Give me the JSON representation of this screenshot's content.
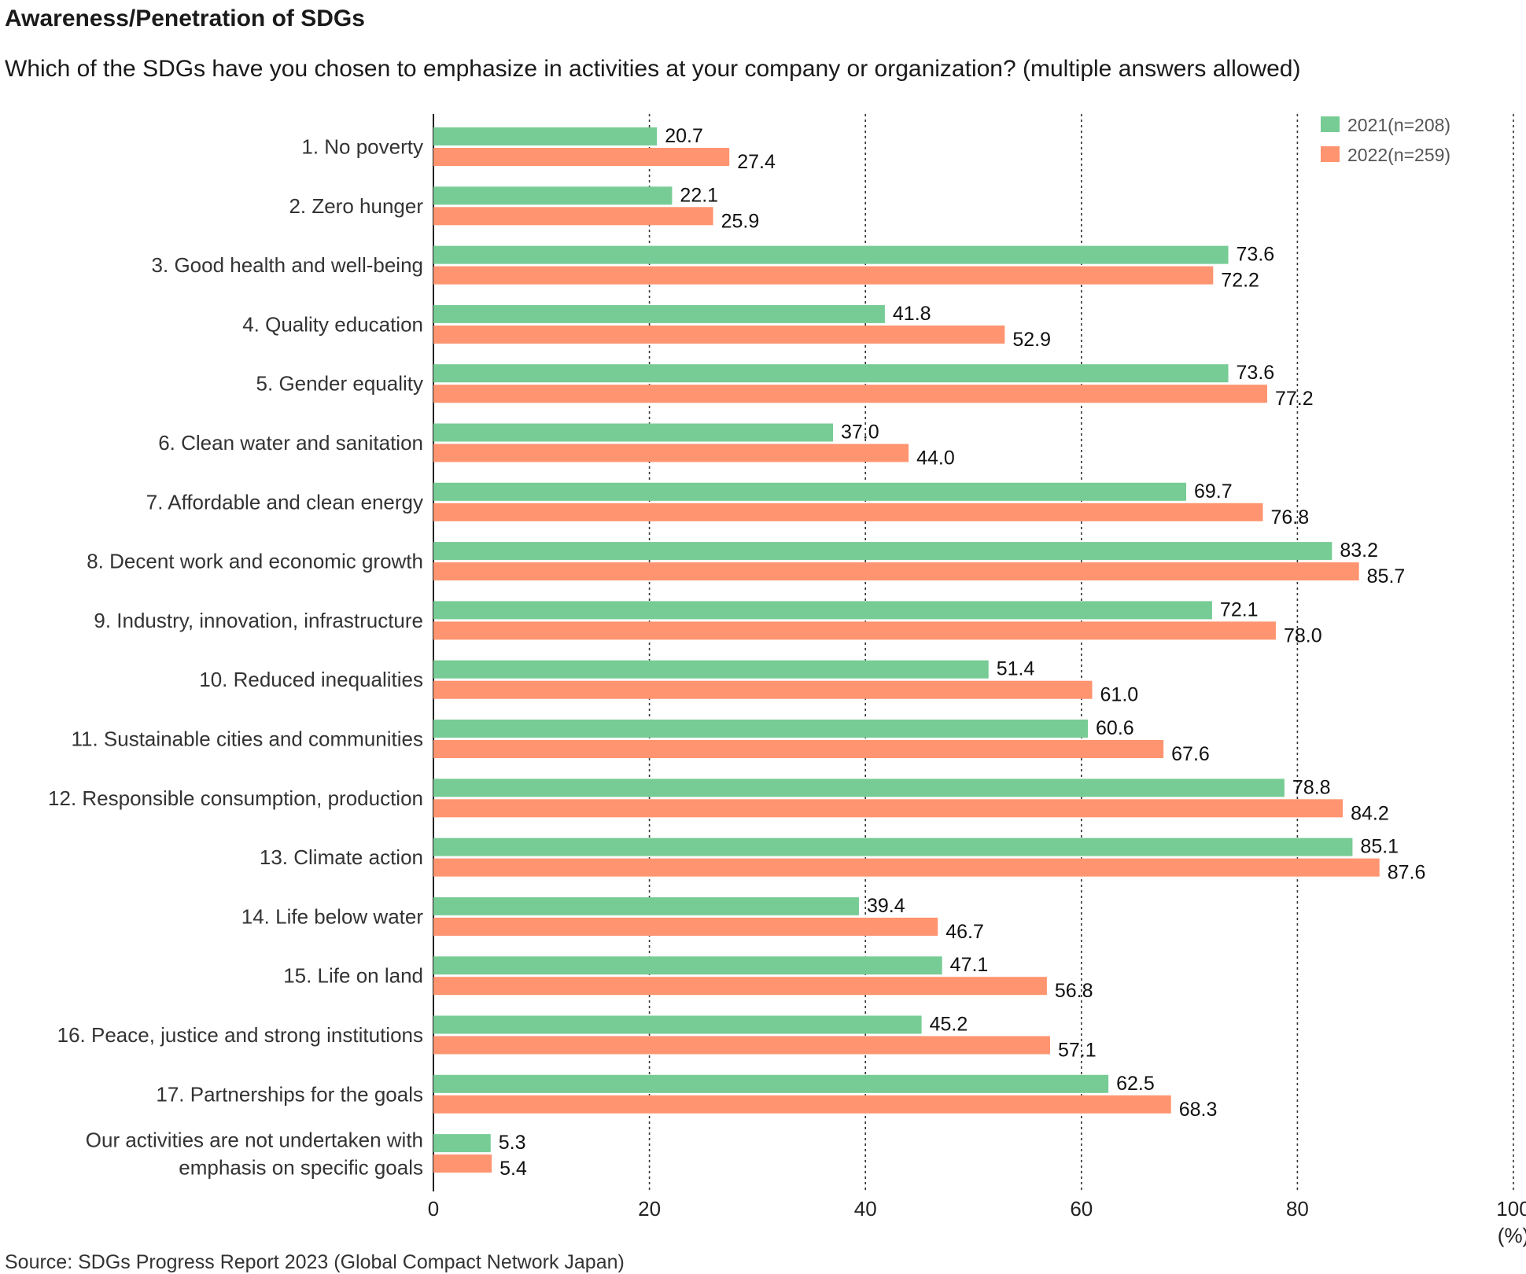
{
  "title": "Awareness/Penetration of SDGs",
  "subtitle": "Which of the SDGs have you chosen to emphasize in activities at your company or organization? (multiple answers allowed)",
  "source": "Source: SDGs Progress Report 2023 (Global Compact Network Japan)",
  "chart_data": {
    "type": "bar",
    "orientation": "horizontal",
    "title": "Awareness/Penetration of SDGs",
    "subtitle": "Which of the SDGs have you chosen to emphasize in activities at your company or organization? (multiple answers allowed)",
    "xlabel": "(%)",
    "ylabel": "",
    "xlim": [
      0,
      100
    ],
    "ticks": [
      0,
      20,
      40,
      60,
      80,
      100
    ],
    "grid": "vertical dotted",
    "legend_position": "top-right",
    "categories": [
      [
        "1. No poverty"
      ],
      [
        "2. Zero hunger"
      ],
      [
        "3. Good health and well-being"
      ],
      [
        "4. Quality education"
      ],
      [
        "5. Gender equality"
      ],
      [
        "6. Clean water and sanitation"
      ],
      [
        "7. Affordable and clean energy"
      ],
      [
        "8. Decent work and economic growth"
      ],
      [
        "9. Industry, innovation, infrastructure"
      ],
      [
        "10. Reduced inequalities"
      ],
      [
        "11. Sustainable cities and communities"
      ],
      [
        "12. Responsible consumption, production"
      ],
      [
        "13. Climate action"
      ],
      [
        "14. Life below water"
      ],
      [
        "15. Life on land"
      ],
      [
        "16. Peace, justice and strong institutions"
      ],
      [
        "17. Partnerships for the goals"
      ],
      [
        "Our activities are not undertaken with",
        "emphasis on specific goals"
      ]
    ],
    "series": [
      {
        "name": "2021(n=208)",
        "color": "#77cc95",
        "values": [
          20.7,
          22.1,
          73.6,
          41.8,
          73.6,
          37.0,
          69.7,
          83.2,
          72.1,
          51.4,
          60.6,
          78.8,
          85.1,
          39.4,
          47.1,
          45.2,
          62.5,
          5.3
        ]
      },
      {
        "name": "2022(n=259)",
        "color": "#ff9470",
        "values": [
          27.4,
          25.9,
          72.2,
          52.9,
          77.2,
          44.0,
          76.8,
          85.7,
          78.0,
          61.0,
          67.6,
          84.2,
          87.6,
          46.7,
          56.8,
          57.1,
          68.3,
          5.4
        ]
      }
    ]
  }
}
